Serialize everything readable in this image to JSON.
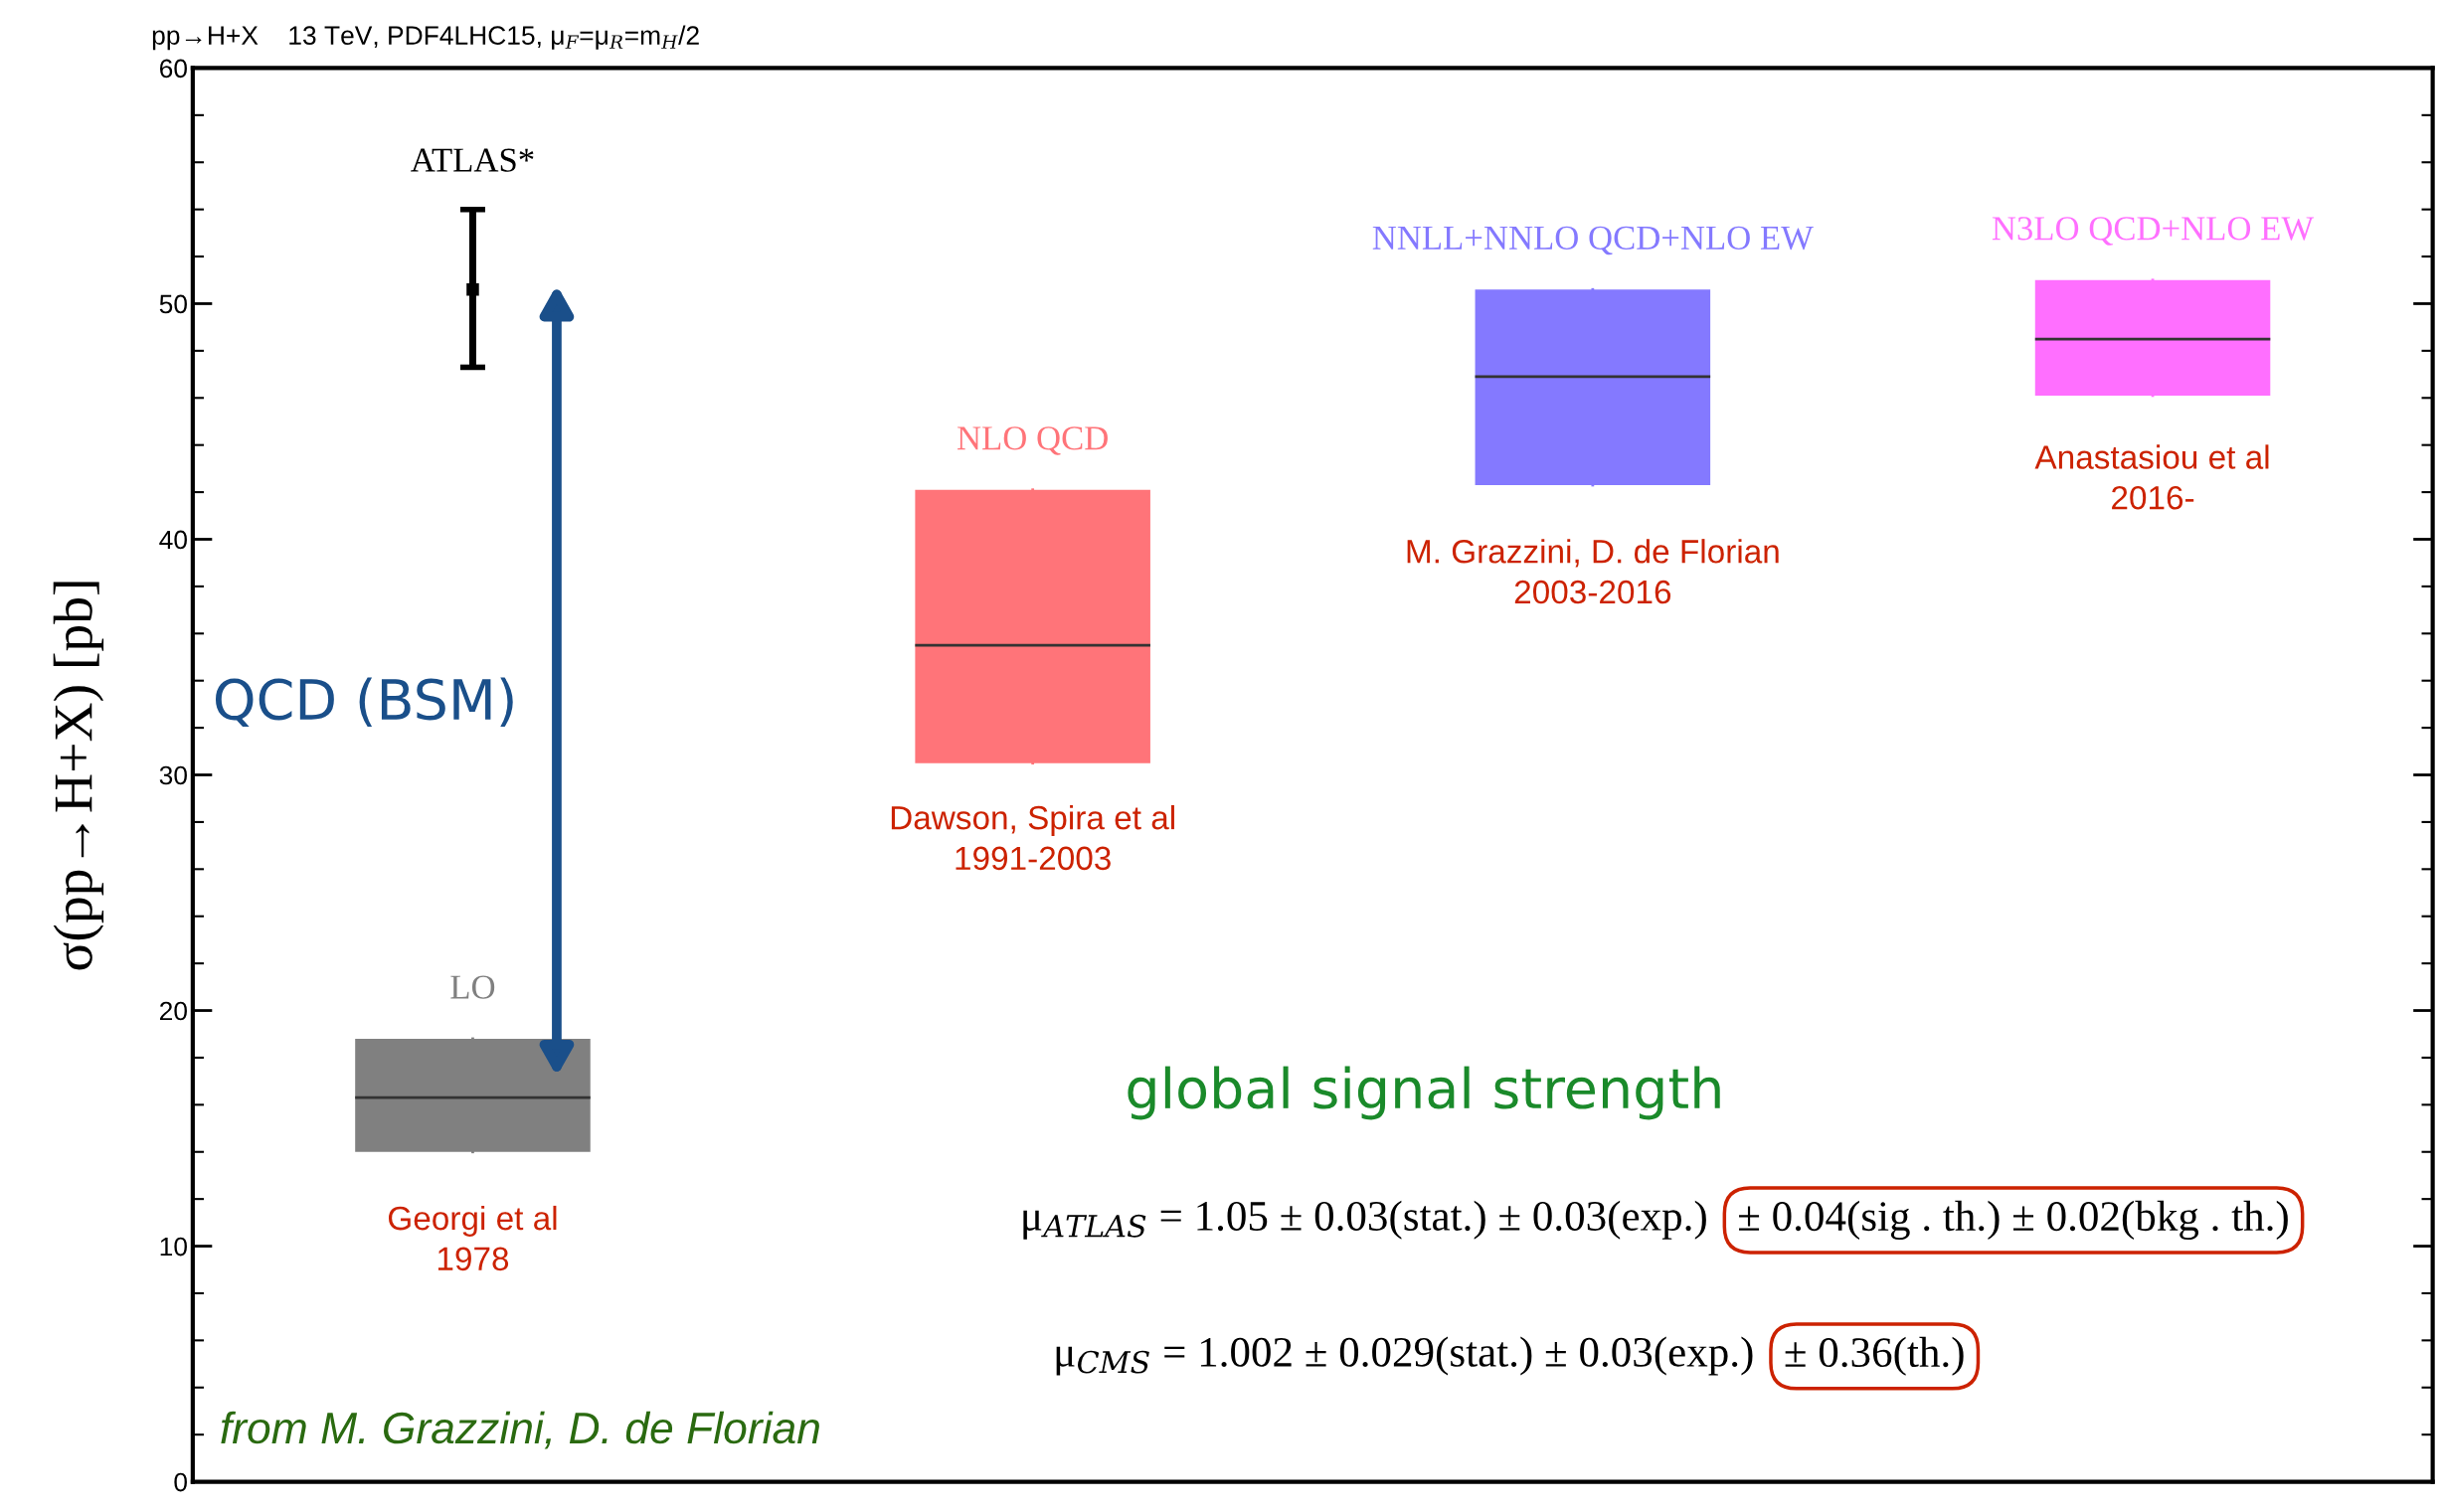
{
  "chart_data": {
    "type": "box",
    "title": "pp→H+X    13 TeV, PDF4LHC15, μ$_{F}$=μ$_{R}$=m$_{H}$/2",
    "ylabel": "σ(pp→H+X) [pb]",
    "categories": [
      null,
      null,
      null,
      null
    ],
    "series": [
      {
        "name": "LO",
        "color": "#808080",
        "boxes": [
          {
            "low": 14.0,
            "q1": 14.0,
            "median": 16.3,
            "q3": 18.8,
            "high": 18.8
          },
          null,
          null,
          null
        ]
      },
      {
        "name": "NLO QCD",
        "color": "#ff7479",
        "boxes": [
          null,
          {
            "low": 30.5,
            "q1": 30.5,
            "median": 35.5,
            "q3": 42.1,
            "high": 42.1
          },
          null,
          null
        ]
      },
      {
        "name": "NNLL+NNLO QCD+NLO EW",
        "color": "#8479ff",
        "boxes": [
          null,
          null,
          {
            "low": 42.3,
            "q1": 42.3,
            "median": 46.9,
            "q3": 50.6,
            "high": 50.6
          },
          null
        ]
      },
      {
        "name": "N3LO QCD+NLO EW",
        "color": "#ff6fff",
        "boxes": [
          null,
          null,
          null,
          {
            "low": 46.1,
            "q1": 46.1,
            "median": 48.5,
            "q3": 51.0,
            "high": 51.0
          }
        ]
      },
      {
        "type": "scatter",
        "name": "ATLAS*",
        "color": "#000000",
        "marker": "square",
        "values": [
          50.6,
          null,
          null,
          null
        ],
        "errors": [
          [
            47.3,
            54.0
          ],
          null,
          null,
          null
        ]
      }
    ],
    "ylim": [
      0,
      60
    ],
    "yticks": [
      0,
      10,
      20,
      30,
      40,
      50,
      60
    ],
    "tick_labels": "y",
    "grid": false,
    "annotations": [
      "Georgi et al\n1978",
      "Dawson, Spira et al\n1991-2003",
      "M. Grazzini, D. de Florian\n2003-2016",
      "Anastasiou et al\n2016-",
      "QCD (BSM)",
      "global signal strength",
      "μ$_{ATLAS}$ = 1.05 ± 0.03(stat.) ± 0.03(exp.)",
      "± 0.04(sig . th.) ± 0.02(bkg . th.)",
      "μ$_{CMS}$ = 1.002 ± 0.029(stat.) ± 0.03(exp.)",
      "± 0.36(th.)",
      "from M. Grazzini, D. de Florian"
    ]
  }
}
